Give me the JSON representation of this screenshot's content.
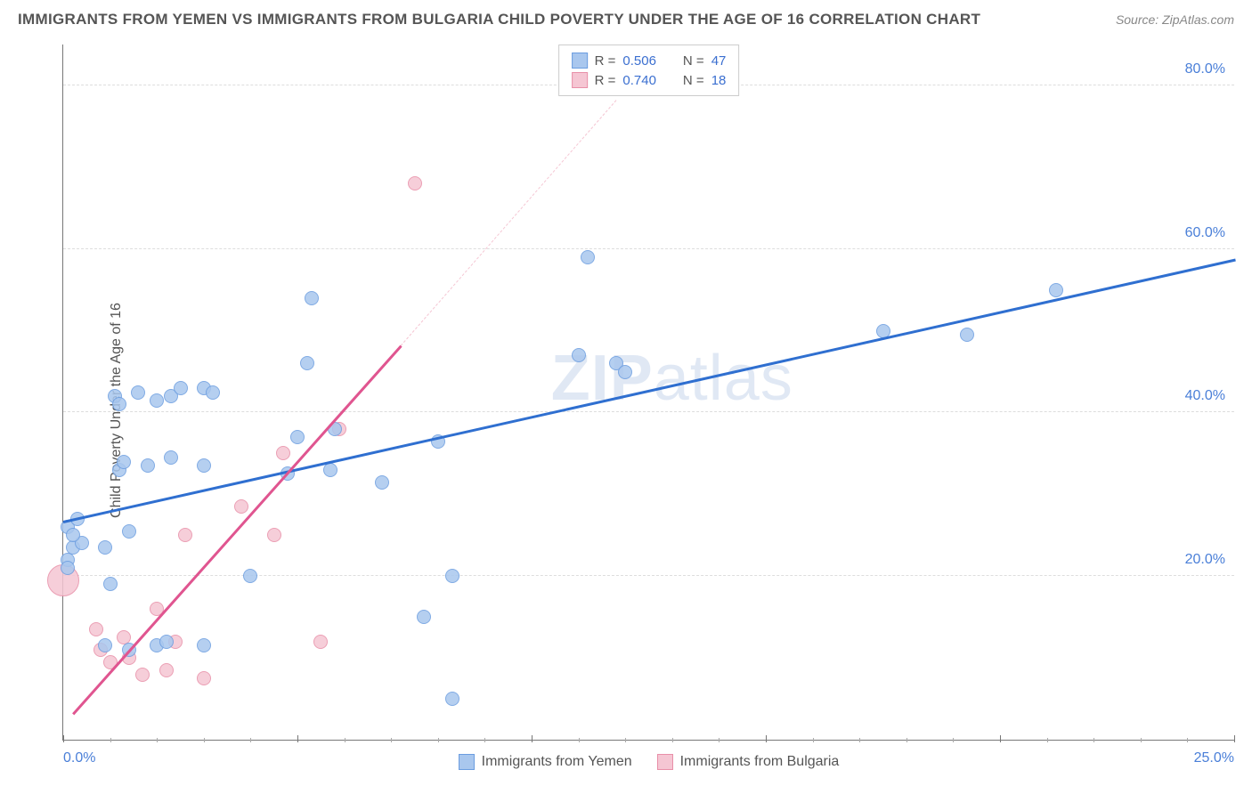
{
  "title": "IMMIGRANTS FROM YEMEN VS IMMIGRANTS FROM BULGARIA CHILD POVERTY UNDER THE AGE OF 16 CORRELATION CHART",
  "source": "Source: ZipAtlas.com",
  "watermark_a": "ZIP",
  "watermark_b": "atlas",
  "ylabel": "Child Poverty Under the Age of 16",
  "chart": {
    "type": "scatter",
    "background_color": "#ffffff",
    "grid_color": "#dddddd",
    "axis_color": "#777777",
    "xlim": [
      0,
      25
    ],
    "ylim": [
      0,
      85
    ],
    "x_major_ticks": [
      0,
      5,
      10,
      15,
      20,
      25
    ],
    "x_minor_step": 1,
    "x_tick_labels": [
      {
        "value": 0,
        "label": "0.0%",
        "align": "left"
      },
      {
        "value": 25,
        "label": "25.0%",
        "align": "right"
      }
    ],
    "y_gridlines": [
      20,
      40,
      60,
      80
    ],
    "y_tick_labels": [
      {
        "value": 20,
        "label": "20.0%"
      },
      {
        "value": 40,
        "label": "40.0%"
      },
      {
        "value": 60,
        "label": "60.0%"
      },
      {
        "value": 80,
        "label": "80.0%"
      }
    ]
  },
  "series": [
    {
      "name": "Immigrants from Yemen",
      "color_fill": "#a9c7ee",
      "color_stroke": "#6b9de0",
      "r_value": "0.506",
      "n_value": "47",
      "trend": {
        "x1": 0,
        "y1": 26.5,
        "x2": 25,
        "y2": 58.5,
        "color": "#2f6fd0"
      },
      "point_radius_default": 8,
      "points": [
        {
          "x": 0.1,
          "y": 22.0
        },
        {
          "x": 0.2,
          "y": 23.5
        },
        {
          "x": 0.1,
          "y": 26.0
        },
        {
          "x": 0.1,
          "y": 21.0
        },
        {
          "x": 0.3,
          "y": 27.0
        },
        {
          "x": 1.0,
          "y": 19.0
        },
        {
          "x": 0.9,
          "y": 23.5
        },
        {
          "x": 1.4,
          "y": 25.5
        },
        {
          "x": 1.2,
          "y": 33.0
        },
        {
          "x": 1.3,
          "y": 34.0
        },
        {
          "x": 1.1,
          "y": 42.0
        },
        {
          "x": 1.2,
          "y": 41.0
        },
        {
          "x": 1.6,
          "y": 42.5
        },
        {
          "x": 2.0,
          "y": 41.5
        },
        {
          "x": 2.3,
          "y": 42.0
        },
        {
          "x": 1.8,
          "y": 33.5
        },
        {
          "x": 2.5,
          "y": 43.0
        },
        {
          "x": 2.3,
          "y": 34.5
        },
        {
          "x": 0.9,
          "y": 11.5
        },
        {
          "x": 1.4,
          "y": 11.0
        },
        {
          "x": 2.0,
          "y": 11.5
        },
        {
          "x": 3.0,
          "y": 43.0
        },
        {
          "x": 3.2,
          "y": 42.5
        },
        {
          "x": 3.0,
          "y": 33.5
        },
        {
          "x": 4.0,
          "y": 20.0
        },
        {
          "x": 4.8,
          "y": 32.5
        },
        {
          "x": 5.0,
          "y": 37.0
        },
        {
          "x": 5.2,
          "y": 46.0
        },
        {
          "x": 5.3,
          "y": 54.0
        },
        {
          "x": 5.7,
          "y": 33.0
        },
        {
          "x": 5.8,
          "y": 38.0
        },
        {
          "x": 6.8,
          "y": 31.5
        },
        {
          "x": 7.7,
          "y": 15.0
        },
        {
          "x": 8.0,
          "y": 36.5
        },
        {
          "x": 8.3,
          "y": 20.0
        },
        {
          "x": 8.3,
          "y": 5.0
        },
        {
          "x": 11.0,
          "y": 47.0
        },
        {
          "x": 11.2,
          "y": 59.0
        },
        {
          "x": 11.8,
          "y": 46.0
        },
        {
          "x": 12.0,
          "y": 45.0
        },
        {
          "x": 17.5,
          "y": 50.0
        },
        {
          "x": 19.3,
          "y": 49.5
        },
        {
          "x": 21.2,
          "y": 55.0
        },
        {
          "x": 2.2,
          "y": 12.0
        },
        {
          "x": 3.0,
          "y": 11.5
        },
        {
          "x": 0.4,
          "y": 24.0
        },
        {
          "x": 0.2,
          "y": 25.0
        }
      ]
    },
    {
      "name": "Immigrants from Bulgaria",
      "color_fill": "#f5c6d3",
      "color_stroke": "#e88fa8",
      "r_value": "0.740",
      "n_value": "18",
      "trend": {
        "x1": 0.2,
        "y1": 3.0,
        "x2": 7.2,
        "y2": 48.0,
        "color": "#e05590",
        "dash_x2": 11.8,
        "dash_y2": 78.0
      },
      "point_radius_default": 8,
      "points": [
        {
          "x": 0.0,
          "y": 19.5,
          "r": 18
        },
        {
          "x": 0.7,
          "y": 13.5
        },
        {
          "x": 0.8,
          "y": 11.0
        },
        {
          "x": 1.0,
          "y": 9.5
        },
        {
          "x": 1.4,
          "y": 10.0
        },
        {
          "x": 1.7,
          "y": 8.0
        },
        {
          "x": 2.0,
          "y": 16.0
        },
        {
          "x": 2.2,
          "y": 8.5
        },
        {
          "x": 2.4,
          "y": 12.0
        },
        {
          "x": 2.6,
          "y": 25.0
        },
        {
          "x": 3.0,
          "y": 7.5
        },
        {
          "x": 3.8,
          "y": 28.5
        },
        {
          "x": 4.5,
          "y": 25.0
        },
        {
          "x": 4.7,
          "y": 35.0
        },
        {
          "x": 5.5,
          "y": 12.0
        },
        {
          "x": 5.9,
          "y": 38.0
        },
        {
          "x": 7.5,
          "y": 68.0
        },
        {
          "x": 1.3,
          "y": 12.5
        }
      ]
    }
  ],
  "legend_top_label_r": "R =",
  "legend_top_label_n": "N ="
}
